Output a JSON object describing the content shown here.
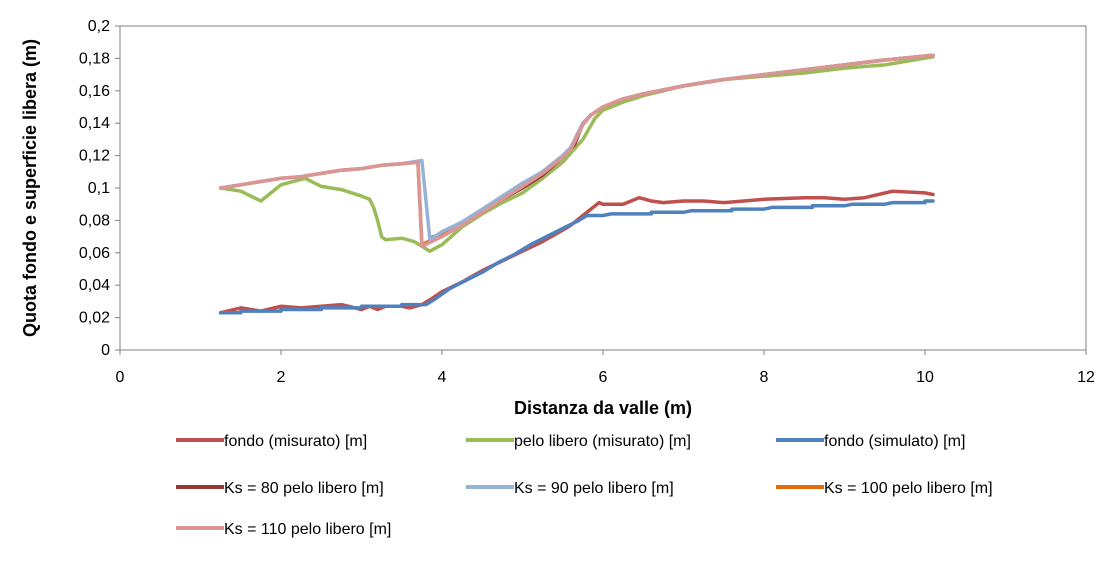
{
  "chart_data": {
    "type": "line",
    "title": "",
    "xlabel": "Distanza da valle (m)",
    "ylabel": "Quota fondo e superficie libera (m)",
    "xlim": [
      0,
      12
    ],
    "ylim": [
      0,
      0.2
    ],
    "x_ticks": [
      0,
      2,
      4,
      6,
      8,
      10,
      12
    ],
    "x_tick_labels": [
      "0",
      "2",
      "4",
      "6",
      "8",
      "10",
      "12"
    ],
    "y_ticks": [
      0,
      0.02,
      0.04,
      0.06,
      0.08,
      0.1,
      0.12,
      0.14,
      0.16,
      0.18,
      0.2
    ],
    "y_tick_labels": [
      "0",
      "0,02",
      "0,04",
      "0,06",
      "0,08",
      "0,1",
      "0,12",
      "0,14",
      "0,16",
      "0,18",
      "0,2"
    ],
    "grid": false,
    "legend_position": "bottom",
    "series": [
      {
        "name": "fondo (misurato) [m]",
        "color": "#C0504D",
        "points": [
          [
            1.25,
            0.023
          ],
          [
            1.5,
            0.026
          ],
          [
            1.75,
            0.024
          ],
          [
            2.0,
            0.027
          ],
          [
            2.25,
            0.026
          ],
          [
            2.5,
            0.027
          ],
          [
            2.75,
            0.028
          ],
          [
            3.0,
            0.025
          ],
          [
            3.1,
            0.027
          ],
          [
            3.2,
            0.025
          ],
          [
            3.3,
            0.027
          ],
          [
            3.5,
            0.027
          ],
          [
            3.6,
            0.026
          ],
          [
            3.75,
            0.028
          ],
          [
            3.85,
            0.031
          ],
          [
            4.0,
            0.036
          ],
          [
            4.25,
            0.042
          ],
          [
            4.5,
            0.049
          ],
          [
            4.75,
            0.055
          ],
          [
            5.0,
            0.061
          ],
          [
            5.25,
            0.067
          ],
          [
            5.5,
            0.074
          ],
          [
            5.6,
            0.077
          ],
          [
            5.75,
            0.083
          ],
          [
            5.85,
            0.087
          ],
          [
            5.95,
            0.091
          ],
          [
            6.0,
            0.09
          ],
          [
            6.25,
            0.09
          ],
          [
            6.45,
            0.094
          ],
          [
            6.6,
            0.092
          ],
          [
            6.75,
            0.091
          ],
          [
            7.0,
            0.092
          ],
          [
            7.25,
            0.092
          ],
          [
            7.5,
            0.091
          ],
          [
            7.75,
            0.092
          ],
          [
            8.0,
            0.093
          ],
          [
            8.5,
            0.094
          ],
          [
            8.75,
            0.094
          ],
          [
            9.0,
            0.093
          ],
          [
            9.25,
            0.094
          ],
          [
            9.6,
            0.098
          ],
          [
            10.0,
            0.097
          ],
          [
            10.1,
            0.096
          ]
        ]
      },
      {
        "name": "pelo libero (misurato) [m]",
        "color": "#9BBB59",
        "points": [
          [
            1.25,
            0.1
          ],
          [
            1.5,
            0.098
          ],
          [
            1.75,
            0.092
          ],
          [
            2.0,
            0.102
          ],
          [
            2.3,
            0.106
          ],
          [
            2.5,
            0.101
          ],
          [
            2.75,
            0.099
          ],
          [
            3.0,
            0.095
          ],
          [
            3.1,
            0.093
          ],
          [
            3.15,
            0.088
          ],
          [
            3.2,
            0.08
          ],
          [
            3.25,
            0.07
          ],
          [
            3.3,
            0.068
          ],
          [
            3.5,
            0.069
          ],
          [
            3.65,
            0.067
          ],
          [
            3.75,
            0.064
          ],
          [
            3.85,
            0.061
          ],
          [
            4.0,
            0.065
          ],
          [
            4.25,
            0.076
          ],
          [
            4.5,
            0.084
          ],
          [
            4.75,
            0.091
          ],
          [
            5.0,
            0.097
          ],
          [
            5.25,
            0.106
          ],
          [
            5.5,
            0.116
          ],
          [
            5.75,
            0.13
          ],
          [
            5.9,
            0.143
          ],
          [
            6.0,
            0.148
          ],
          [
            6.25,
            0.153
          ],
          [
            6.5,
            0.157
          ],
          [
            7.0,
            0.163
          ],
          [
            7.5,
            0.167
          ],
          [
            8.0,
            0.169
          ],
          [
            8.5,
            0.171
          ],
          [
            9.0,
            0.174
          ],
          [
            9.5,
            0.176
          ],
          [
            10.1,
            0.181
          ]
        ]
      },
      {
        "name": "fondo (simulato) [m]",
        "color": "#4F81BD",
        "points": [
          [
            1.25,
            0.023
          ],
          [
            1.5,
            0.023
          ],
          [
            1.5,
            0.024
          ],
          [
            2.0,
            0.024
          ],
          [
            2.0,
            0.025
          ],
          [
            2.5,
            0.025
          ],
          [
            2.5,
            0.026
          ],
          [
            3.0,
            0.026
          ],
          [
            3.0,
            0.027
          ],
          [
            3.5,
            0.027
          ],
          [
            3.5,
            0.028
          ],
          [
            3.8,
            0.028
          ],
          [
            3.9,
            0.031
          ],
          [
            4.1,
            0.038
          ],
          [
            4.3,
            0.043
          ],
          [
            4.5,
            0.048
          ],
          [
            4.7,
            0.054
          ],
          [
            4.9,
            0.059
          ],
          [
            5.1,
            0.065
          ],
          [
            5.3,
            0.07
          ],
          [
            5.5,
            0.075
          ],
          [
            5.7,
            0.08
          ],
          [
            5.8,
            0.083
          ],
          [
            6.0,
            0.083
          ],
          [
            6.1,
            0.084
          ],
          [
            6.6,
            0.084
          ],
          [
            6.6,
            0.085
          ],
          [
            7.0,
            0.085
          ],
          [
            7.1,
            0.086
          ],
          [
            7.6,
            0.086
          ],
          [
            7.6,
            0.087
          ],
          [
            8.0,
            0.087
          ],
          [
            8.1,
            0.088
          ],
          [
            8.6,
            0.088
          ],
          [
            8.6,
            0.089
          ],
          [
            9.0,
            0.089
          ],
          [
            9.1,
            0.09
          ],
          [
            9.5,
            0.09
          ],
          [
            9.6,
            0.091
          ],
          [
            10.0,
            0.091
          ],
          [
            10.0,
            0.092
          ],
          [
            10.1,
            0.092
          ]
        ]
      },
      {
        "name": "Ks = 80 pelo libero [m]",
        "color": "#953735",
        "points": [
          [
            3.85,
            0.069
          ],
          [
            4.0,
            0.072
          ],
          [
            4.25,
            0.078
          ],
          [
            4.5,
            0.085
          ],
          [
            4.75,
            0.093
          ],
          [
            5.0,
            0.1
          ],
          [
            5.25,
            0.108
          ],
          [
            5.5,
            0.119
          ],
          [
            5.65,
            0.127
          ],
          [
            5.75,
            0.14
          ],
          [
            5.85,
            0.145
          ],
          [
            6.0,
            0.15
          ],
          [
            6.25,
            0.155
          ],
          [
            6.5,
            0.158
          ],
          [
            7.0,
            0.163
          ],
          [
            7.5,
            0.167
          ],
          [
            8.0,
            0.17
          ],
          [
            8.5,
            0.173
          ],
          [
            9.0,
            0.176
          ],
          [
            9.5,
            0.179
          ],
          [
            10.1,
            0.182
          ]
        ]
      },
      {
        "name": "Ks = 90 pelo libero [m]",
        "color": "#95B3D7",
        "points": [
          [
            1.25,
            0.1
          ],
          [
            1.5,
            0.102
          ],
          [
            1.75,
            0.104
          ],
          [
            2.0,
            0.106
          ],
          [
            2.25,
            0.107
          ],
          [
            2.5,
            0.109
          ],
          [
            2.75,
            0.111
          ],
          [
            3.0,
            0.112
          ],
          [
            3.25,
            0.114
          ],
          [
            3.5,
            0.115
          ],
          [
            3.75,
            0.117
          ],
          [
            3.85,
            0.068
          ],
          [
            4.0,
            0.073
          ],
          [
            4.25,
            0.079
          ],
          [
            4.5,
            0.087
          ],
          [
            4.75,
            0.095
          ],
          [
            5.0,
            0.103
          ],
          [
            5.25,
            0.11
          ],
          [
            5.5,
            0.12
          ],
          [
            5.6,
            0.125
          ],
          [
            5.75,
            0.14
          ],
          [
            5.85,
            0.145
          ],
          [
            6.0,
            0.15
          ],
          [
            6.25,
            0.155
          ],
          [
            6.5,
            0.158
          ],
          [
            7.0,
            0.163
          ],
          [
            7.5,
            0.167
          ],
          [
            8.0,
            0.17
          ],
          [
            8.5,
            0.173
          ],
          [
            9.0,
            0.176
          ],
          [
            9.5,
            0.179
          ],
          [
            10.1,
            0.182
          ]
        ]
      },
      {
        "name": "Ks = 100 pelo libero [m]",
        "color": "#E46C0A",
        "points": [
          [
            1.25,
            0.1
          ],
          [
            1.5,
            0.102
          ],
          [
            1.75,
            0.104
          ],
          [
            2.0,
            0.106
          ],
          [
            2.25,
            0.107
          ],
          [
            2.5,
            0.109
          ],
          [
            2.75,
            0.111
          ],
          [
            3.0,
            0.112
          ],
          [
            3.25,
            0.114
          ],
          [
            3.5,
            0.115
          ],
          [
            3.7,
            0.116
          ],
          [
            3.75,
            0.065
          ],
          [
            4.0,
            0.071
          ],
          [
            4.25,
            0.078
          ],
          [
            4.5,
            0.086
          ],
          [
            4.75,
            0.094
          ],
          [
            5.0,
            0.102
          ],
          [
            5.25,
            0.11
          ],
          [
            5.5,
            0.12
          ],
          [
            5.6,
            0.125
          ],
          [
            5.75,
            0.14
          ],
          [
            5.85,
            0.145
          ],
          [
            6.0,
            0.15
          ],
          [
            6.25,
            0.155
          ],
          [
            6.5,
            0.158
          ],
          [
            7.0,
            0.163
          ],
          [
            7.5,
            0.167
          ],
          [
            8.0,
            0.17
          ],
          [
            8.5,
            0.173
          ],
          [
            9.0,
            0.176
          ],
          [
            9.5,
            0.179
          ],
          [
            10.1,
            0.182
          ]
        ]
      },
      {
        "name": "Ks = 110 pelo libero [m]",
        "color": "#D99694",
        "points": [
          [
            1.25,
            0.1
          ],
          [
            1.5,
            0.102
          ],
          [
            1.75,
            0.104
          ],
          [
            2.0,
            0.106
          ],
          [
            2.25,
            0.107
          ],
          [
            2.5,
            0.109
          ],
          [
            2.75,
            0.111
          ],
          [
            3.0,
            0.112
          ],
          [
            3.25,
            0.114
          ],
          [
            3.5,
            0.115
          ],
          [
            3.7,
            0.116
          ],
          [
            3.75,
            0.064
          ],
          [
            4.0,
            0.07
          ],
          [
            4.25,
            0.077
          ],
          [
            4.5,
            0.085
          ],
          [
            4.75,
            0.093
          ],
          [
            5.0,
            0.101
          ],
          [
            5.25,
            0.109
          ],
          [
            5.5,
            0.119
          ],
          [
            5.6,
            0.124
          ],
          [
            5.75,
            0.139
          ],
          [
            5.85,
            0.145
          ],
          [
            6.0,
            0.15
          ],
          [
            6.25,
            0.155
          ],
          [
            6.5,
            0.158
          ],
          [
            7.0,
            0.163
          ],
          [
            7.5,
            0.167
          ],
          [
            8.0,
            0.17
          ],
          [
            8.5,
            0.173
          ],
          [
            9.0,
            0.176
          ],
          [
            9.5,
            0.179
          ],
          [
            10.1,
            0.182
          ]
        ]
      }
    ]
  }
}
